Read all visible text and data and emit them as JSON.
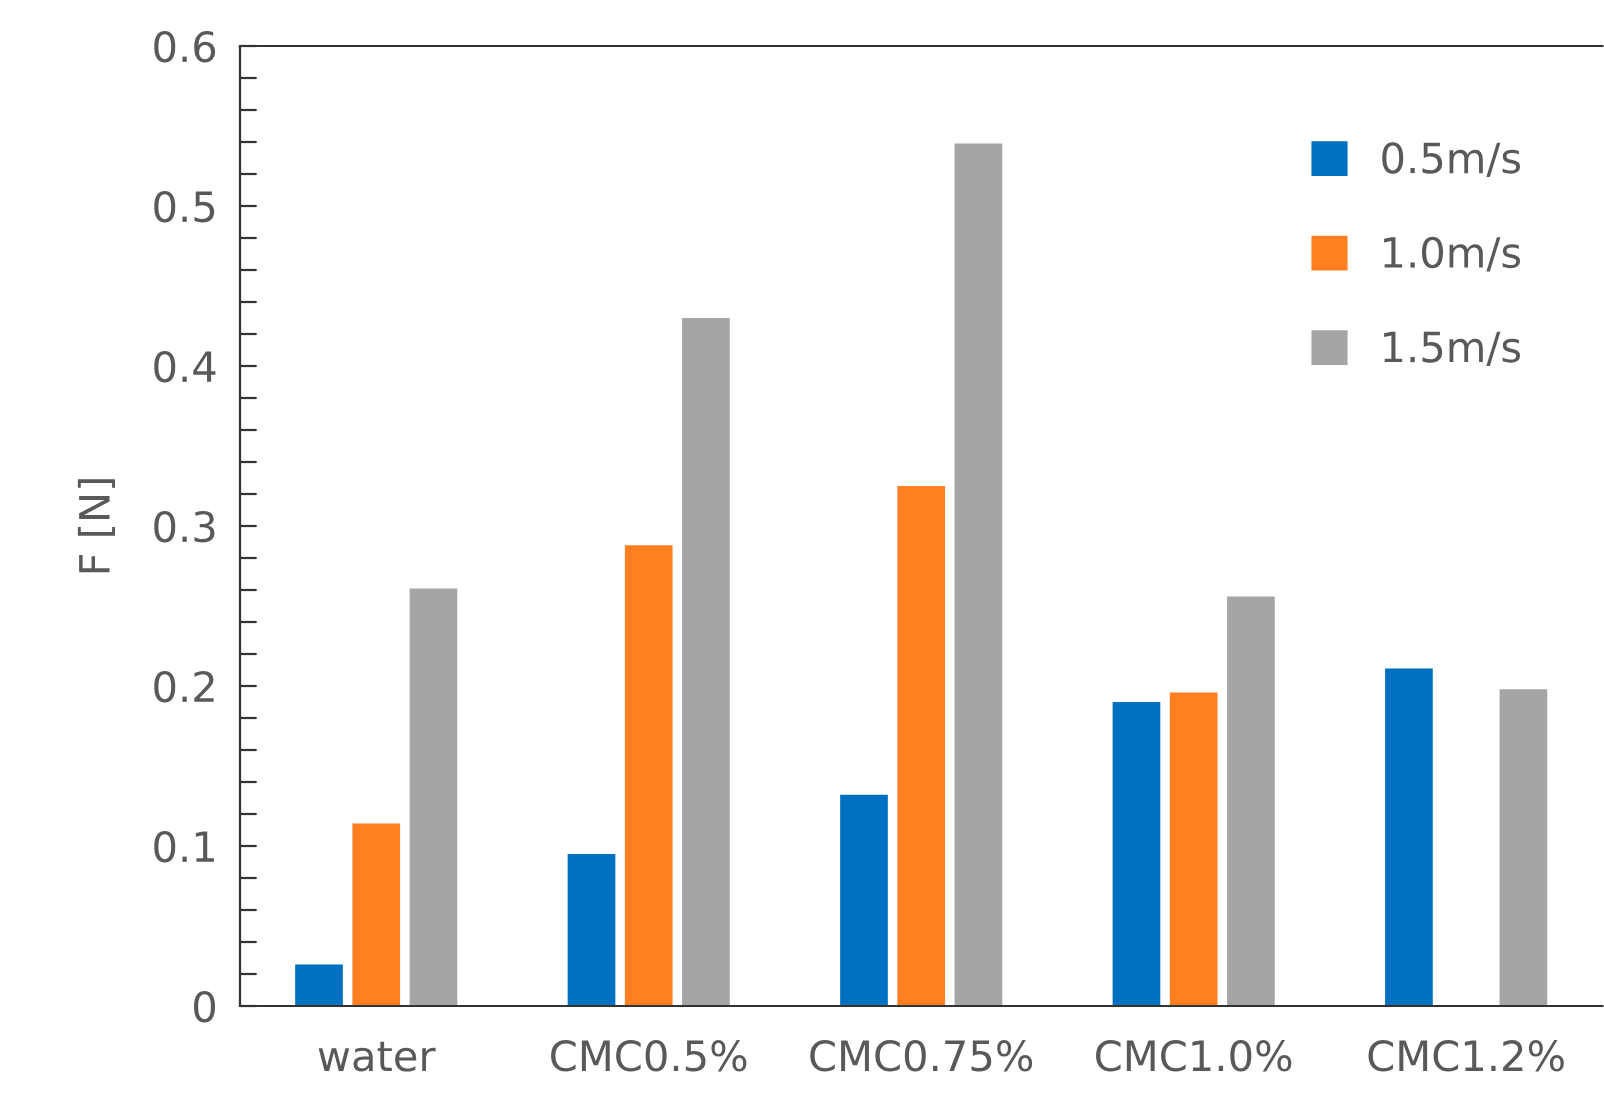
{
  "chart_data": {
    "type": "bar",
    "ylabel": "F [N]",
    "categories": [
      "water",
      "CMC0.5%",
      "CMC0.75%",
      "CMC1.0%",
      "CMC1.2%"
    ],
    "series": [
      {
        "name": "0.5m/s",
        "color": "#0070c0",
        "values": [
          0.026,
          0.095,
          0.132,
          0.19,
          0.211
        ]
      },
      {
        "name": "1.0m/s",
        "color": "#ff7f21",
        "values": [
          0.114,
          0.288,
          0.325,
          0.196,
          null
        ]
      },
      {
        "name": "1.5m/s",
        "color": "#a5a5a5",
        "values": [
          0.261,
          0.43,
          0.539,
          0.256,
          0.198
        ]
      }
    ],
    "ylim": [
      0,
      0.6
    ],
    "yticks": [
      0,
      {
        "value": 0.02,
        "label": null
      },
      {
        "value": 0.04,
        "label": null
      },
      {
        "value": 0.06,
        "label": null
      },
      {
        "value": 0.08,
        "label": null
      },
      0.1,
      {
        "value": 0.12,
        "label": null
      },
      {
        "value": 0.14,
        "label": null
      },
      {
        "value": 0.16,
        "label": null
      },
      {
        "value": 0.18,
        "label": null
      },
      0.2,
      {
        "value": 0.22,
        "label": null
      },
      {
        "value": 0.24,
        "label": null
      },
      {
        "value": 0.26,
        "label": null
      },
      {
        "value": 0.28,
        "label": null
      },
      0.3,
      {
        "value": 0.32,
        "label": null
      },
      {
        "value": 0.34,
        "label": null
      },
      {
        "value": 0.36,
        "label": null
      },
      {
        "value": 0.38,
        "label": null
      },
      0.4,
      {
        "value": 0.42,
        "label": null
      },
      {
        "value": 0.44,
        "label": null
      },
      {
        "value": 0.46,
        "label": null
      },
      {
        "value": 0.48,
        "label": null
      },
      0.5,
      {
        "value": 0.52,
        "label": null
      },
      {
        "value": 0.54,
        "label": null
      },
      {
        "value": 0.56,
        "label": null
      },
      {
        "value": 0.58,
        "label": null
      },
      0.6
    ],
    "grid": false,
    "legend": "top right"
  }
}
